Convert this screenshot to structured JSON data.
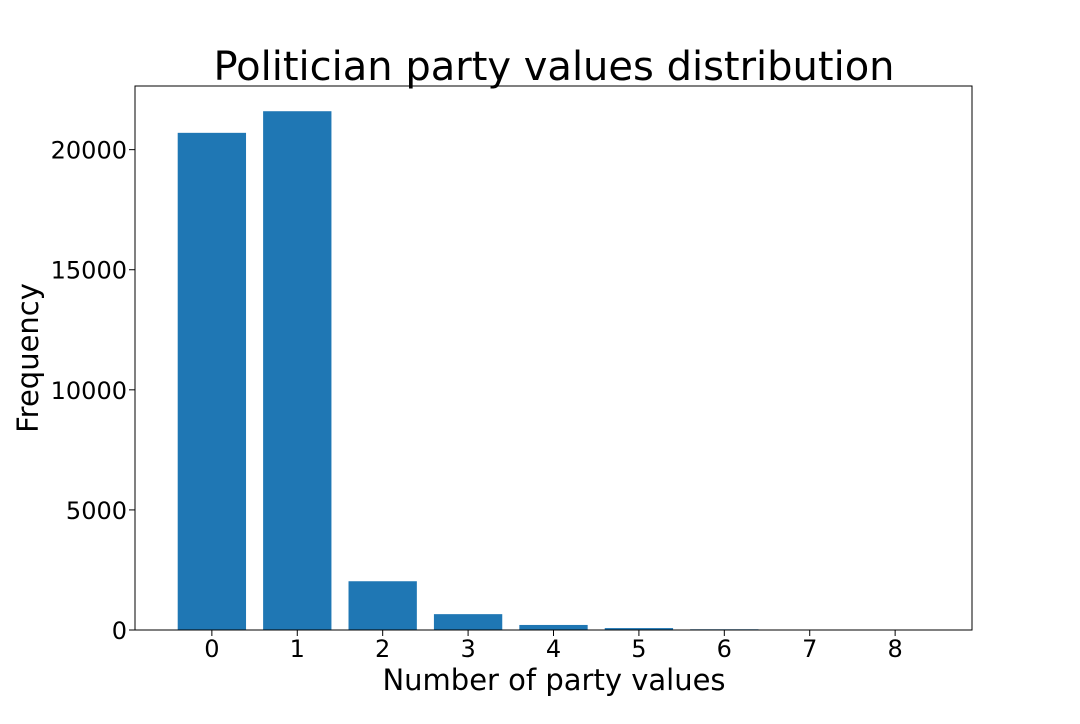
{
  "chart_data": {
    "type": "bar",
    "title": "Politician party values distribution",
    "xlabel": "Number of party values",
    "ylabel": "Frequency",
    "categories": [
      "0",
      "1",
      "2",
      "3",
      "4",
      "5",
      "6",
      "7",
      "8"
    ],
    "values": [
      20700,
      21600,
      2030,
      660,
      210,
      80,
      30,
      8,
      3
    ],
    "ylim": [
      0,
      22650
    ],
    "yticks": [
      0,
      5000,
      10000,
      15000,
      20000
    ],
    "ytick_labels": [
      "0",
      "5000",
      "10000",
      "15000",
      "20000"
    ],
    "grid": false,
    "legend": "none",
    "bar_color": "#1f77b4"
  }
}
